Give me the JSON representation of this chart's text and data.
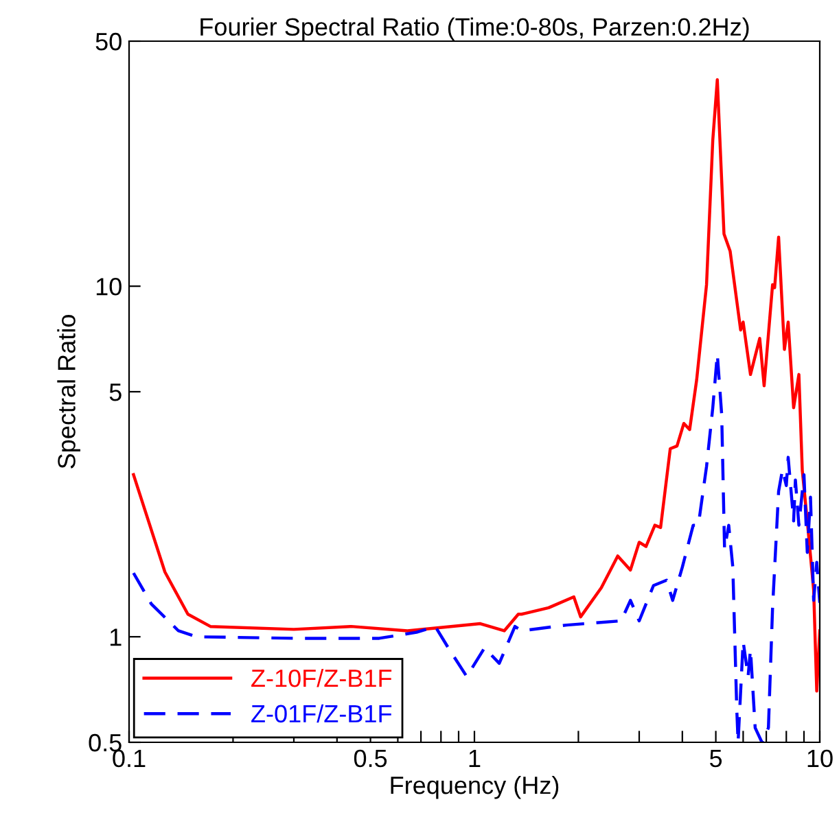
{
  "chart_data": {
    "type": "line",
    "title": "Fourier Spectral Ratio (Time:0-80s, Parzen:0.2Hz)",
    "xlabel": "Frequency (Hz)",
    "ylabel": "Spectral Ratio",
    "log": "xy",
    "xlim": [
      0.1,
      10
    ],
    "ylim": [
      0.5,
      50
    ],
    "xticks": [
      0.1,
      {
        "value": 0.2,
        "label": null
      },
      {
        "value": 0.3,
        "label": null
      },
      {
        "value": 0.4,
        "label": null
      },
      0.5,
      {
        "value": 0.6,
        "label": null
      },
      {
        "value": 0.7,
        "label": null
      },
      {
        "value": 0.8,
        "label": null
      },
      {
        "value": 0.9,
        "label": null
      },
      1,
      {
        "value": 2,
        "label": null
      },
      {
        "value": 3,
        "label": null
      },
      {
        "value": 4,
        "label": null
      },
      5,
      {
        "value": 6,
        "label": null
      },
      {
        "value": 7,
        "label": null
      },
      {
        "value": 8,
        "label": null
      },
      {
        "value": 9,
        "label": null
      },
      10
    ],
    "yticks": [
      0.5,
      1,
      5,
      10,
      50
    ],
    "grid": false,
    "legend": "bottom left",
    "marker": "none",
    "series": [
      {
        "name": "Z-10F/Z-B1F",
        "color": "#ff0000",
        "line_style": "solid",
        "x": [
          0.103,
          0.127,
          0.148,
          0.172,
          0.3,
          0.44,
          0.64,
          1.04,
          1.22,
          1.34,
          1.37,
          1.64,
          1.94,
          2.03,
          2.33,
          2.6,
          2.83,
          3.0,
          3.14,
          3.33,
          3.46,
          3.69,
          3.86,
          4.04,
          4.2,
          4.4,
          4.7,
          4.9,
          5.05,
          5.28,
          5.5,
          5.9,
          6.0,
          6.3,
          6.7,
          6.9,
          7.3,
          7.4,
          7.6,
          7.9,
          8.1,
          8.4,
          8.7,
          8.9,
          9.2,
          9.6,
          9.8,
          10
        ],
        "values": [
          2.9,
          1.53,
          1.16,
          1.07,
          1.05,
          1.07,
          1.04,
          1.09,
          1.04,
          1.16,
          1.16,
          1.21,
          1.3,
          1.14,
          1.38,
          1.7,
          1.55,
          1.86,
          1.81,
          2.08,
          2.05,
          3.44,
          3.5,
          4.06,
          3.9,
          5.4,
          10.1,
          26.1,
          38.8,
          14.1,
          12.6,
          7.5,
          7.9,
          5.6,
          7.1,
          5.2,
          10.1,
          9.9,
          13.8,
          6.6,
          7.9,
          4.5,
          5.6,
          2.98,
          2.14,
          1.36,
          0.7,
          1.04
        ]
      },
      {
        "name": "Z-01F/Z-B1F",
        "color": "#0000ff",
        "line_style": "dashed",
        "x": [
          0.103,
          0.116,
          0.139,
          0.157,
          0.3,
          0.53,
          0.68,
          0.77,
          0.84,
          0.95,
          1.07,
          1.18,
          1.31,
          1.37,
          1.85,
          2.66,
          2.83,
          3.0,
          3.3,
          3.6,
          3.75,
          4.0,
          4.3,
          4.45,
          4.7,
          4.9,
          5.05,
          5.2,
          5.3,
          5.45,
          5.6,
          5.75,
          5.8,
          6.0,
          6.2,
          6.3,
          6.5,
          6.8,
          7.1,
          7.3,
          7.6,
          7.8,
          8.0,
          8.1,
          8.4,
          8.5,
          8.7,
          9.0,
          9.2,
          9.4,
          9.6,
          9.8,
          10
        ],
        "values": [
          1.52,
          1.24,
          1.04,
          1.0,
          0.99,
          0.99,
          1.03,
          1.07,
          0.93,
          0.77,
          0.93,
          0.84,
          1.07,
          1.04,
          1.08,
          1.11,
          1.27,
          1.11,
          1.4,
          1.45,
          1.27,
          1.58,
          2.08,
          2.08,
          3.06,
          4.5,
          6.4,
          4.3,
          1.78,
          2.08,
          1.58,
          0.62,
          0.5,
          0.97,
          0.77,
          0.92,
          0.55,
          0.5,
          0.55,
          1.21,
          2.6,
          3.0,
          2.7,
          3.25,
          2.14,
          2.8,
          2.08,
          2.9,
          1.74,
          2.5,
          1.27,
          1.63,
          1.25
        ]
      }
    ]
  }
}
